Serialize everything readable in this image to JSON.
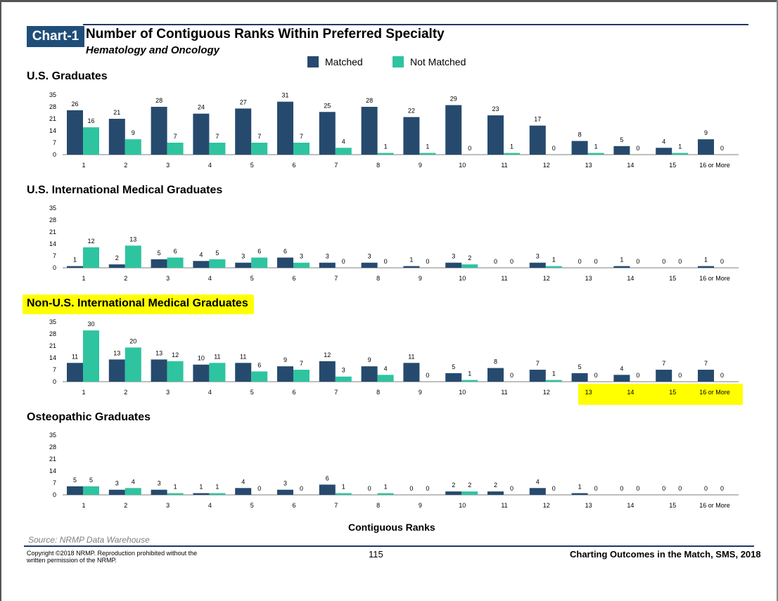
{
  "header": {
    "badge": "Chart-1",
    "title": "Number of Contiguous Ranks Within Preferred Specialty",
    "subtitle": "Hematology and Oncology"
  },
  "legend": {
    "matched": "Matched",
    "not_matched": "Not Matched"
  },
  "colors": {
    "matched": "#264a6e",
    "not_matched": "#2ec4a0",
    "highlight": "#ffff00",
    "rule": "#1f3864"
  },
  "chart_data": {
    "type": "bar",
    "xlabel": "Contiguous Ranks",
    "ylim": [
      0,
      35
    ],
    "yticks": [
      0,
      7,
      14,
      21,
      28,
      35
    ],
    "categories": [
      "1",
      "2",
      "3",
      "4",
      "5",
      "6",
      "7",
      "8",
      "9",
      "10",
      "11",
      "12",
      "13",
      "14",
      "15",
      "16 or More"
    ],
    "panels": [
      {
        "title": "U.S. Graduates",
        "series": [
          {
            "name": "Matched",
            "values": [
              26,
              21,
              28,
              24,
              27,
              31,
              25,
              28,
              22,
              29,
              23,
              17,
              8,
              5,
              4,
              9
            ]
          },
          {
            "name": "Not Matched",
            "values": [
              16,
              9,
              7,
              7,
              7,
              7,
              4,
              1,
              1,
              0,
              1,
              0,
              1,
              0,
              1,
              0
            ]
          }
        ]
      },
      {
        "title": "U.S. International Medical Graduates",
        "series": [
          {
            "name": "Matched",
            "values": [
              1,
              2,
              5,
              4,
              3,
              6,
              3,
              3,
              1,
              3,
              0,
              3,
              0,
              1,
              0,
              1
            ]
          },
          {
            "name": "Not Matched",
            "values": [
              12,
              13,
              6,
              5,
              6,
              3,
              0,
              0,
              0,
              2,
              0,
              1,
              0,
              0,
              0,
              0
            ]
          }
        ]
      },
      {
        "title": "Non-U.S. International Medical Graduates",
        "series": [
          {
            "name": "Matched",
            "values": [
              11,
              13,
              13,
              10,
              11,
              9,
              12,
              9,
              11,
              5,
              8,
              7,
              5,
              4,
              7,
              7
            ]
          },
          {
            "name": "Not Matched",
            "values": [
              30,
              20,
              12,
              11,
              6,
              7,
              3,
              4,
              0,
              1,
              0,
              1,
              0,
              0,
              0,
              0
            ]
          }
        ]
      },
      {
        "title": "Osteopathic Graduates",
        "series": [
          {
            "name": "Matched",
            "values": [
              5,
              3,
              3,
              1,
              4,
              3,
              6,
              0,
              0,
              2,
              2,
              4,
              1,
              0,
              0,
              0
            ]
          },
          {
            "name": "Not Matched",
            "values": [
              5,
              4,
              1,
              1,
              0,
              0,
              1,
              1,
              0,
              2,
              0,
              0,
              0,
              0,
              0,
              0
            ]
          }
        ]
      }
    ]
  },
  "footer": {
    "source": "Source: NRMP Data Warehouse",
    "copyright": "Copyright ©2018 NRMP. Reproduction prohibited without the written permission of the NRMP.",
    "page": "115",
    "title": "Charting Outcomes in the Match, SMS, 2018"
  }
}
